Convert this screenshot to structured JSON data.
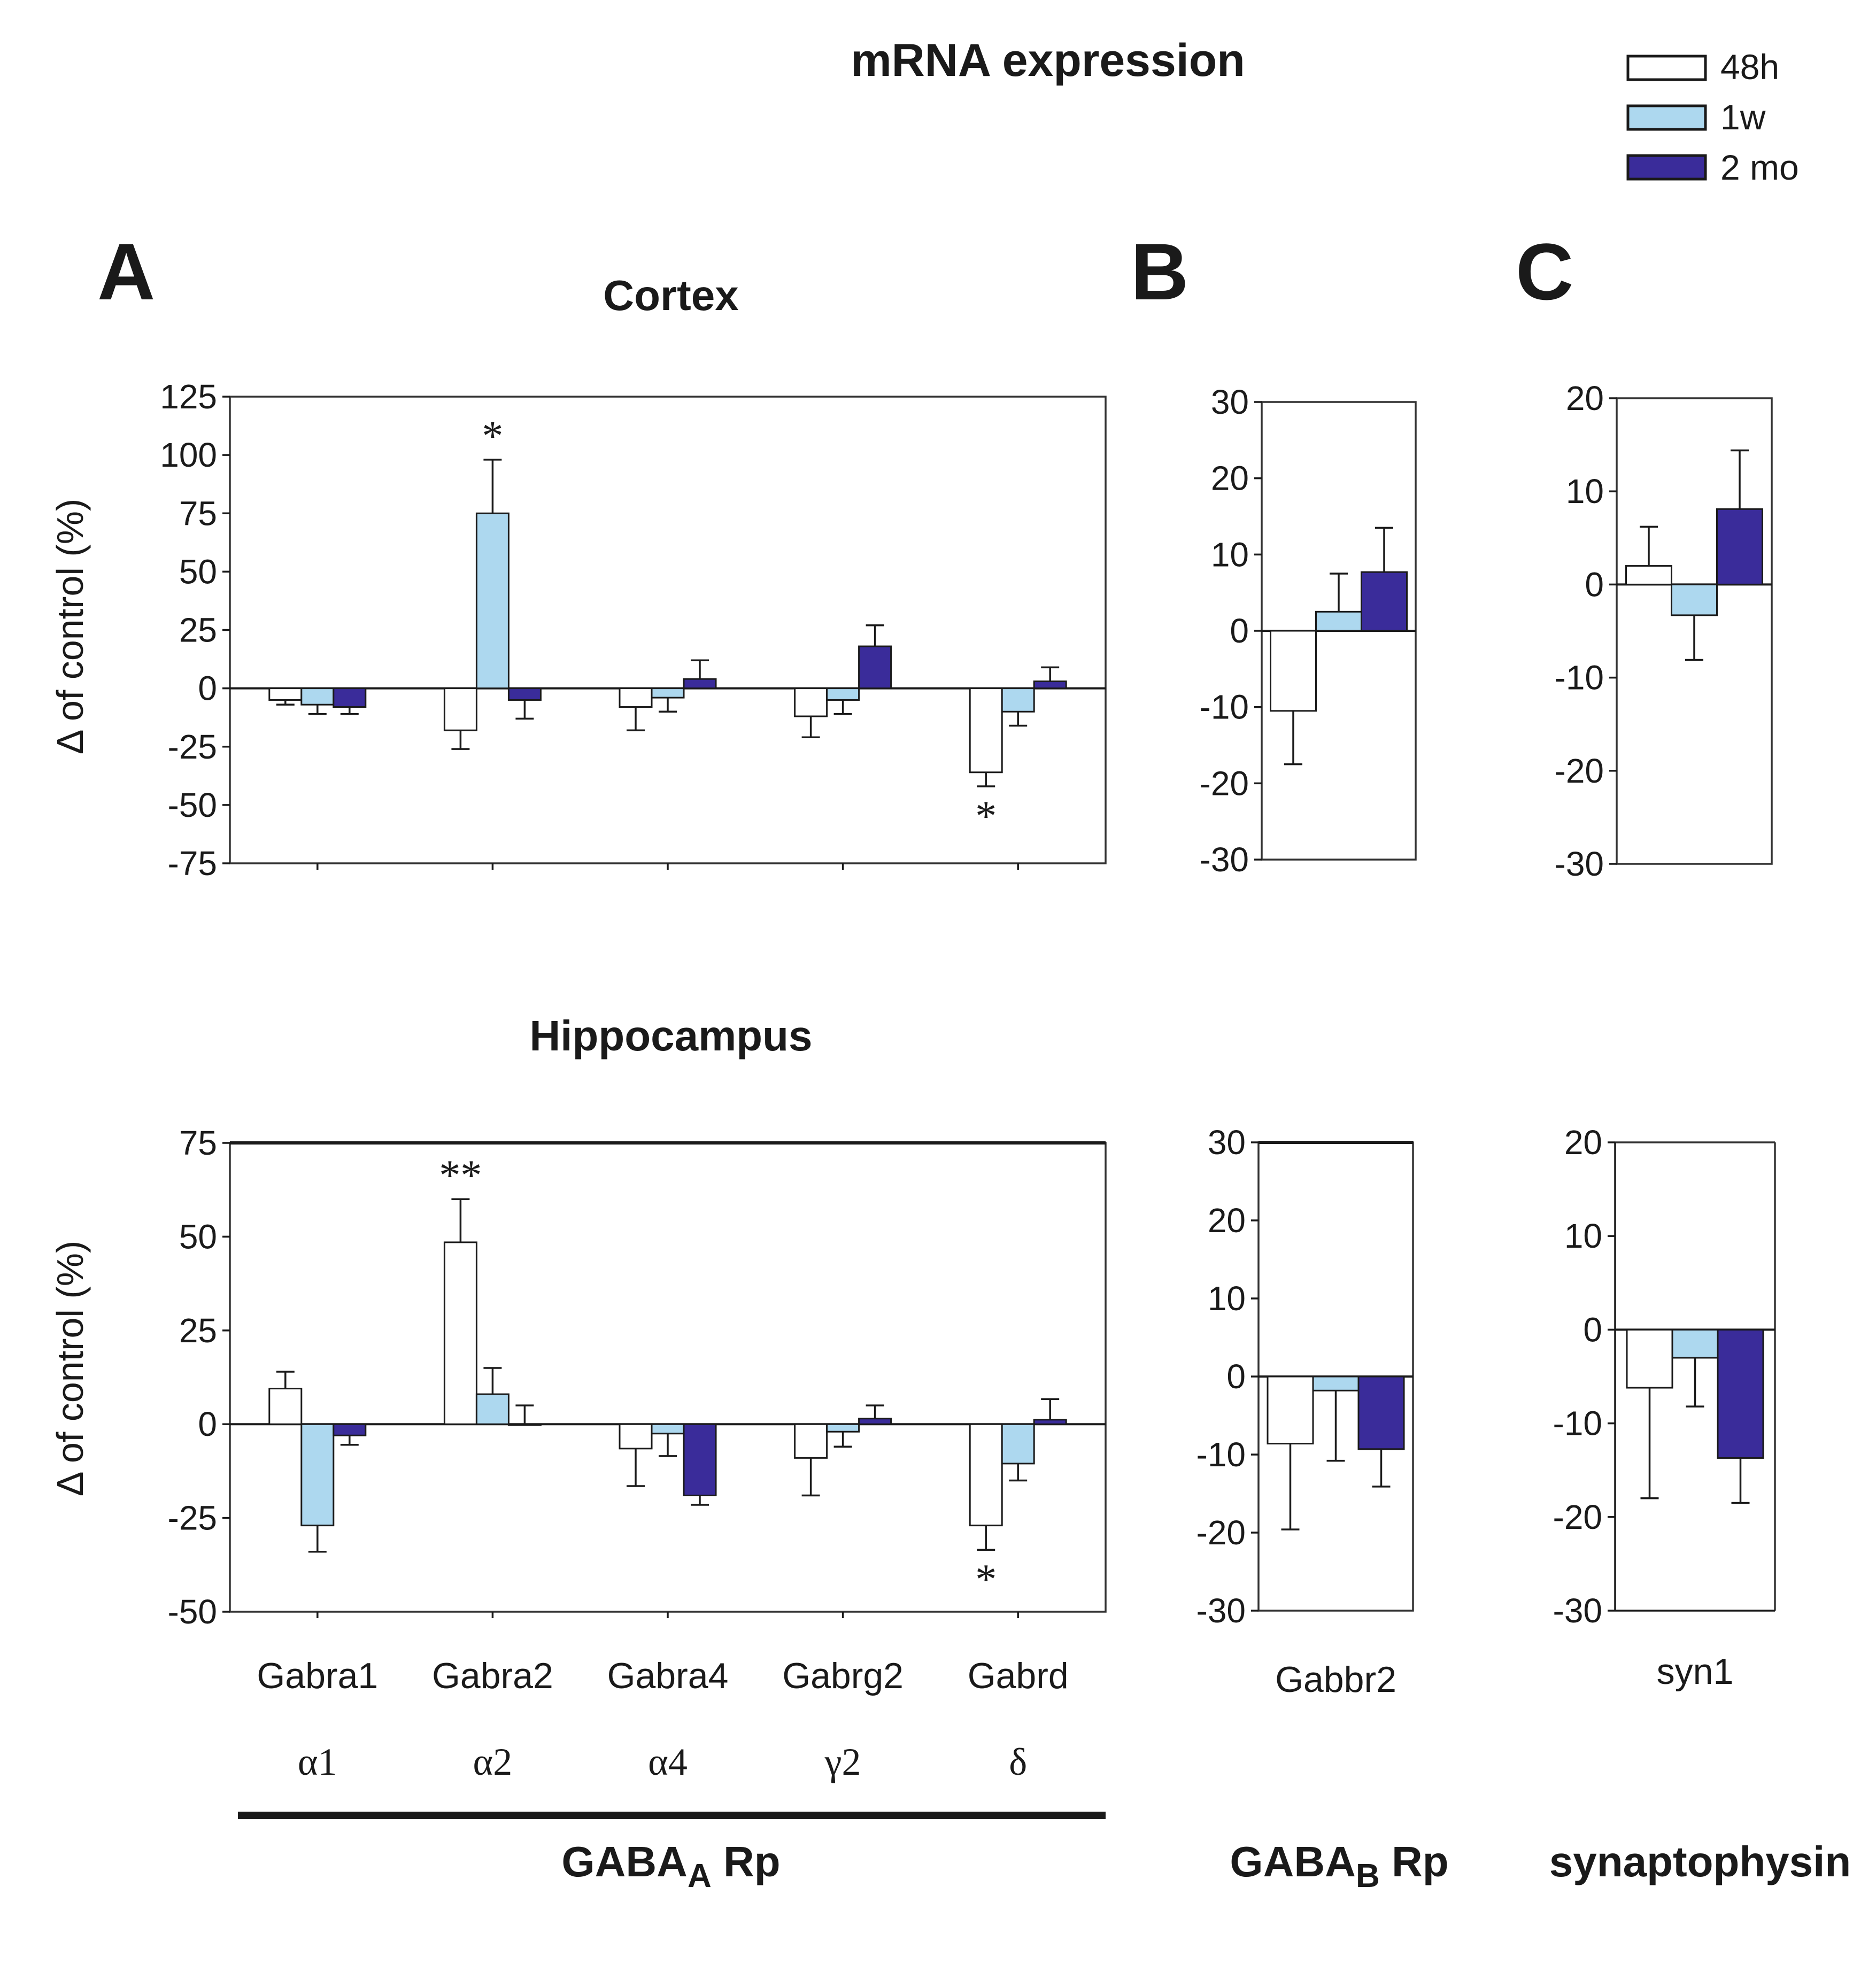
{
  "title": "mRNA expression",
  "panel_letters": [
    "A",
    "B",
    "C"
  ],
  "region_titles": {
    "cortex": "Cortex",
    "hippocampus": "Hippocampus"
  },
  "ylabel": "Δ of control (%)",
  "legend": [
    {
      "label": "48h",
      "color": "#ffffff"
    },
    {
      "label": "1w",
      "color": "#add8ef"
    },
    {
      "label": "2 mo",
      "color": "#3a2c9a"
    }
  ],
  "group_labels": {
    "gabaa": {
      "main": "GABA",
      "sub": "A",
      "suffix": " Rp"
    },
    "gabab": {
      "main": "GABA",
      "sub": "B",
      "suffix": " Rp"
    },
    "syn": {
      "main": "synaptophysin"
    }
  },
  "chart_data": [
    {
      "id": "cortex_gabaa",
      "type": "bar",
      "region": "Cortex",
      "panel": "A",
      "categories": [
        "Gabra1",
        "Gabra2",
        "Gabra4",
        "Gabrg2",
        "Gabrd"
      ],
      "subunits": [
        "α1",
        "α2",
        "α4",
        "γ2",
        "δ"
      ],
      "ylim": [
        -75,
        125
      ],
      "yticks": [
        125,
        100,
        75,
        50,
        25,
        0,
        -25,
        -50,
        -75
      ],
      "series": [
        {
          "name": "48h",
          "values": [
            -5,
            -18,
            -8,
            -12,
            -36
          ],
          "errors": [
            2,
            8,
            10,
            9,
            6
          ]
        },
        {
          "name": "1w",
          "values": [
            -7,
            75,
            -4,
            -5,
            -10
          ],
          "errors": [
            4,
            23,
            6,
            6,
            6
          ]
        },
        {
          "name": "2 mo",
          "values": [
            -8,
            -5,
            4,
            18,
            3
          ],
          "errors": [
            3,
            8,
            8,
            9,
            6
          ]
        }
      ],
      "annotations": [
        {
          "category": "Gabra2",
          "series": "1w",
          "text": "*"
        },
        {
          "category": "Gabrd",
          "series": "48h",
          "text": "*"
        }
      ]
    },
    {
      "id": "cortex_gabab",
      "type": "bar",
      "region": "Cortex",
      "panel": "B",
      "categories": [
        "Gabbr2"
      ],
      "ylim": [
        -30,
        30
      ],
      "yticks": [
        30,
        20,
        10,
        0,
        -10,
        -20,
        -30
      ],
      "series": [
        {
          "name": "48h",
          "values": [
            -10.5
          ],
          "errors": [
            7
          ]
        },
        {
          "name": "1w",
          "values": [
            2.5
          ],
          "errors": [
            5
          ]
        },
        {
          "name": "2 mo",
          "values": [
            7.7
          ],
          "errors": [
            5.8
          ]
        }
      ]
    },
    {
      "id": "cortex_syn",
      "type": "bar",
      "region": "Cortex",
      "panel": "C",
      "categories": [
        "syn1"
      ],
      "ylim": [
        -30,
        20
      ],
      "yticks": [
        20,
        10,
        0,
        -10,
        -20,
        -30
      ],
      "series": [
        {
          "name": "48h",
          "values": [
            2
          ],
          "errors": [
            4.2
          ]
        },
        {
          "name": "1w",
          "values": [
            -3.3
          ],
          "errors": [
            4.8
          ]
        },
        {
          "name": "2 mo",
          "values": [
            8.1
          ],
          "errors": [
            6.3
          ]
        }
      ]
    },
    {
      "id": "hippocampus_gabaa",
      "type": "bar",
      "region": "Hippocampus",
      "panel": "A",
      "categories": [
        "Gabra1",
        "Gabra2",
        "Gabra4",
        "Gabrg2",
        "Gabrd"
      ],
      "subunits": [
        "α1",
        "α2",
        "α4",
        "γ2",
        "δ"
      ],
      "ylim": [
        -50,
        75
      ],
      "yticks": [
        75,
        50,
        25,
        0,
        -25,
        -50
      ],
      "series": [
        {
          "name": "48h",
          "values": [
            9.5,
            48.5,
            -6.5,
            -9,
            -27
          ],
          "errors": [
            4.5,
            11.5,
            10,
            10,
            6.5
          ]
        },
        {
          "name": "1w",
          "values": [
            -27,
            8,
            -2.5,
            -2,
            -10.5
          ],
          "errors": [
            7,
            7,
            6,
            4,
            4.5
          ]
        },
        {
          "name": "2 mo",
          "values": [
            -3,
            0,
            -19,
            1.5,
            1.2
          ],
          "errors": [
            2.5,
            5,
            2.5,
            3.5,
            5.5
          ]
        }
      ],
      "annotations": [
        {
          "category": "Gabra2",
          "series": "48h",
          "text": "**"
        },
        {
          "category": "Gabrd",
          "series": "48h",
          "text": "*"
        }
      ]
    },
    {
      "id": "hippocampus_gabab",
      "type": "bar",
      "region": "Hippocampus",
      "panel": "B",
      "categories": [
        "Gabbr2"
      ],
      "ylim": [
        -30,
        30
      ],
      "yticks": [
        30,
        20,
        10,
        0,
        -10,
        -20,
        -30
      ],
      "series": [
        {
          "name": "48h",
          "values": [
            -8.6
          ],
          "errors": [
            11
          ]
        },
        {
          "name": "1w",
          "values": [
            -1.8
          ],
          "errors": [
            9
          ]
        },
        {
          "name": "2 mo",
          "values": [
            -9.3
          ],
          "errors": [
            4.8
          ]
        }
      ]
    },
    {
      "id": "hippocampus_syn",
      "type": "bar",
      "region": "Hippocampus",
      "panel": "C",
      "categories": [
        "syn1"
      ],
      "ylim": [
        -30,
        20
      ],
      "yticks": [
        20,
        10,
        0,
        -10,
        -20,
        -30
      ],
      "series": [
        {
          "name": "48h",
          "values": [
            -6.2
          ],
          "errors": [
            11.8
          ]
        },
        {
          "name": "1w",
          "values": [
            -3
          ],
          "errors": [
            5.2
          ]
        },
        {
          "name": "2 mo",
          "values": [
            -13.7
          ],
          "errors": [
            4.8
          ]
        }
      ]
    }
  ]
}
